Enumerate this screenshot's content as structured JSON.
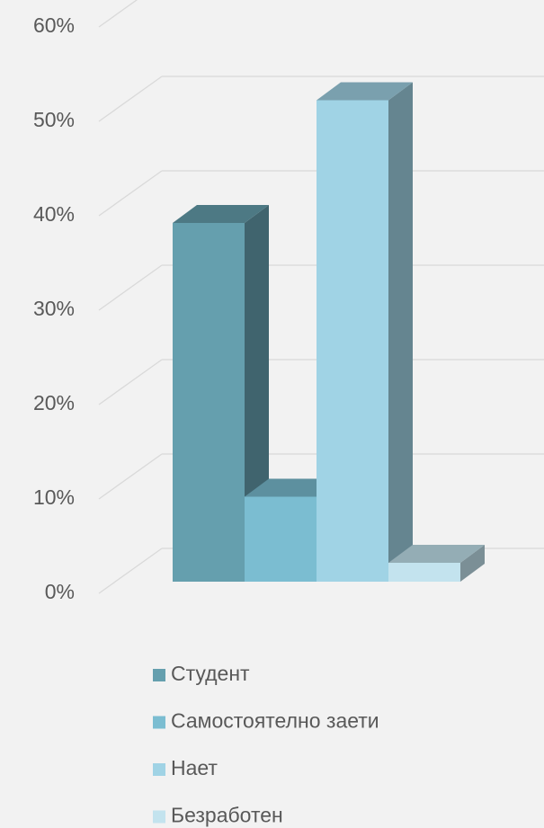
{
  "chart_data": {
    "type": "bar3d",
    "categories": [
      null
    ],
    "series": [
      {
        "name": "Студент",
        "color": "#659fae",
        "values": [
          38
        ]
      },
      {
        "name": "Самостоятелно заети",
        "color": "#7bbdd1",
        "values": [
          9
        ]
      },
      {
        "name": "Нает",
        "color": "#a0d3e5",
        "values": [
          51
        ]
      },
      {
        "name": "Безработен",
        "color": "#c3e3ee",
        "values": [
          2
        ]
      }
    ],
    "ylim": [
      0,
      60
    ],
    "yticks": [
      {
        "value": 0,
        "label": "0%"
      },
      {
        "value": 10,
        "label": "10%"
      },
      {
        "value": 20,
        "label": "20%"
      },
      {
        "value": 30,
        "label": "30%"
      },
      {
        "value": 40,
        "label": "40%"
      },
      {
        "value": 50,
        "label": "50%"
      },
      {
        "value": 60,
        "label": "60%"
      }
    ],
    "grid": true,
    "legend": "bottom"
  }
}
